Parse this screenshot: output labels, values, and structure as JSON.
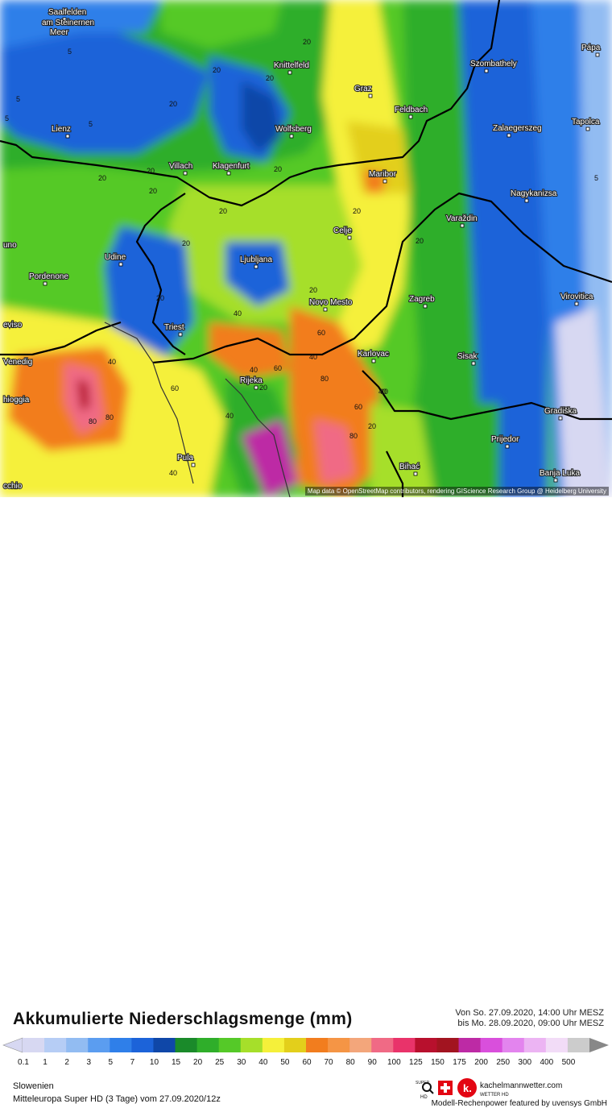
{
  "map": {
    "attribution": "Map data © OpenStreetMap contributors, rendering GIScience Research Group @ Heidelberg University",
    "cities": [
      {
        "name": "Saalfelden"
      },
      {
        "name": "am Steinernen"
      },
      {
        "name": "Meer"
      },
      {
        "name": "Knittelfeld"
      },
      {
        "name": "Szombathely"
      },
      {
        "name": "Pápa"
      },
      {
        "name": "Graz"
      },
      {
        "name": "Feldbach"
      },
      {
        "name": "Lienz"
      },
      {
        "name": "Wolfsberg"
      },
      {
        "name": "Zalaegerszeg"
      },
      {
        "name": "Tapolca"
      },
      {
        "name": "Villach"
      },
      {
        "name": "Klagenfurt"
      },
      {
        "name": "Maribor"
      },
      {
        "name": "Nagykanizsa"
      },
      {
        "name": "Varaždin"
      },
      {
        "name": "Celje"
      },
      {
        "name": "uno"
      },
      {
        "name": "Udine"
      },
      {
        "name": "Ljubljana"
      },
      {
        "name": "Pordenone"
      },
      {
        "name": "Novo Mesto"
      },
      {
        "name": "Zagreb"
      },
      {
        "name": "Virovitica"
      },
      {
        "name": "eviso"
      },
      {
        "name": "Triest"
      },
      {
        "name": "Karlovac"
      },
      {
        "name": "Sisak"
      },
      {
        "name": "Venedig"
      },
      {
        "name": "Rijeka"
      },
      {
        "name": "hioggia"
      },
      {
        "name": "Gradiška"
      },
      {
        "name": "Prijedor"
      },
      {
        "name": "Pula"
      },
      {
        "name": "Bihać"
      },
      {
        "name": "Banja Luka"
      },
      {
        "name": "cchio"
      }
    ],
    "contour_values": [
      "5",
      "20",
      "20",
      "20",
      "20",
      "20",
      "20",
      "40",
      "40",
      "40",
      "40",
      "40",
      "60",
      "60",
      "60",
      "60",
      "80",
      "80",
      "80",
      "80",
      "20",
      "20",
      "20",
      "20",
      "20",
      "5",
      "5",
      "5",
      "5",
      "20",
      "40",
      "40",
      "20",
      "20",
      "20",
      "40",
      "20"
    ]
  },
  "header": {
    "title": "Akkumulierte Niederschlagsmenge (mm)",
    "period_from": "Von So. 27.09.2020, 14:00 Uhr MESZ",
    "period_to": "bis Mo. 28.09.2020, 09:00 Uhr MESZ"
  },
  "legend": {
    "ticks": [
      "0.1",
      "1",
      "2",
      "3",
      "5",
      "7",
      "10",
      "15",
      "20",
      "25",
      "30",
      "40",
      "50",
      "60",
      "70",
      "80",
      "90",
      "100",
      "125",
      "150",
      "175",
      "200",
      "250",
      "300",
      "400",
      "500"
    ],
    "colors": [
      "#d7d8f2",
      "#b6cdf5",
      "#92bcf2",
      "#5b9df0",
      "#2f7fe9",
      "#1c63d9",
      "#0f47a8",
      "#1a8a2a",
      "#2fae2a",
      "#55c928",
      "#a6df2a",
      "#f5f03a",
      "#e3cf1b",
      "#f27d1e",
      "#f59545",
      "#f3a67b",
      "#f06a85",
      "#e9336a",
      "#b8102d",
      "#a21420",
      "#bd2aa5",
      "#d94fdc",
      "#e384ee",
      "#ecb4f3",
      "#f2dcf7",
      "#cccccc"
    ]
  },
  "footer": {
    "region": "Slowenien",
    "model": "Mitteleuropa Super HD (3 Tage) vom 27.09.2020/12z",
    "brand": "kachelmannwetter.com",
    "brand_sub": "WETTER HD",
    "badge_super": "SUPER",
    "badge_hd": "HD",
    "credit": "Modell-Rechenpower featured by uvensys GmbH"
  }
}
